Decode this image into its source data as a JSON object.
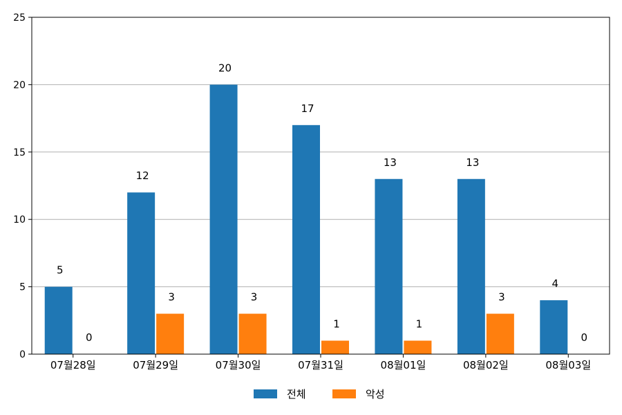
{
  "chart_data": {
    "type": "bar",
    "categories": [
      "07월28일",
      "07월29일",
      "07월30일",
      "07월31일",
      "08월01일",
      "08월02일",
      "08월03일"
    ],
    "series": [
      {
        "name": "전체",
        "values": [
          5,
          12,
          20,
          17,
          13,
          13,
          4
        ],
        "color": "#1f77b4"
      },
      {
        "name": "악성",
        "values": [
          0,
          3,
          3,
          1,
          1,
          3,
          0
        ],
        "color": "#ff7f0e"
      }
    ],
    "ylim": [
      0,
      25
    ],
    "yticks": [
      0,
      5,
      10,
      15,
      20,
      25
    ],
    "grid": true,
    "legend_position": "bottom-center"
  }
}
